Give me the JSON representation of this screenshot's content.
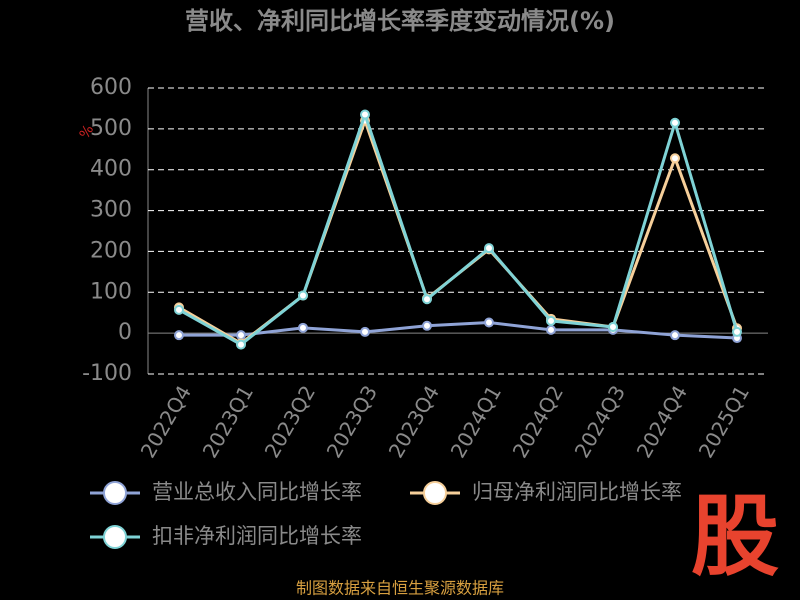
{
  "chart_data": {
    "type": "line",
    "title": "营收、净利同比增长率季度变动情况(%)",
    "y_axis_label": "%",
    "categories": [
      "2022Q4",
      "2023Q1",
      "2023Q2",
      "2023Q3",
      "2023Q4",
      "2024Q1",
      "2024Q2",
      "2024Q3",
      "2024Q4",
      "2025Q1"
    ],
    "series": [
      {
        "name": "营业总收入同比增长率",
        "color": "#8fa3d6",
        "values": [
          -5,
          -5,
          13,
          3,
          18,
          26,
          8,
          8,
          -5,
          -12
        ]
      },
      {
        "name": "归母净利润同比增长率",
        "color": "#f6cf9a",
        "values": [
          63,
          -25,
          92,
          520,
          85,
          205,
          35,
          15,
          428,
          12
        ]
      },
      {
        "name": "扣非净利润同比增长率",
        "color": "#7fd3d6",
        "values": [
          57,
          -28,
          92,
          535,
          83,
          208,
          30,
          15,
          515,
          3
        ]
      }
    ],
    "ylim": [
      -100,
      600
    ],
    "yticks": [
      -100,
      0,
      100,
      200,
      300,
      400,
      500,
      600
    ],
    "grid": true,
    "watermark": "股",
    "source": "制图数据来自恒生聚源数据库"
  }
}
